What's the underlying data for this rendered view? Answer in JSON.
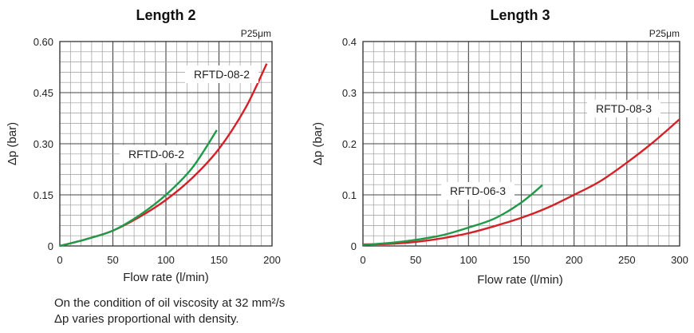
{
  "chart_data": [
    {
      "type": "line",
      "title": "Length 2",
      "xlabel": "Flow rate  (l/min)",
      "ylabel": "Δp (bar)",
      "note": "P25μm",
      "xlim": [
        0,
        200
      ],
      "ylim": [
        0,
        0.6
      ],
      "xticks": [
        "0",
        "50",
        "100",
        "150",
        "200"
      ],
      "yticks": [
        "0",
        "0.15",
        "0.30",
        "0.45",
        "0.60"
      ],
      "xtick_values": [
        0,
        50,
        100,
        150,
        200
      ],
      "ytick_values": [
        0,
        0.15,
        0.3,
        0.45,
        0.6
      ],
      "x_minor_step": 10,
      "y_minor_step": 0.03,
      "grid": true,
      "series": [
        {
          "name": "RFTD-08-2",
          "color": "#d42027",
          "x": [
            0,
            25,
            50,
            75,
            100,
            125,
            150,
            175,
            195
          ],
          "y": [
            0,
            0.02,
            0.045,
            0.085,
            0.135,
            0.2,
            0.285,
            0.405,
            0.535
          ]
        },
        {
          "name": "RFTD-06-2",
          "color": "#1e9a48",
          "x": [
            0,
            25,
            50,
            75,
            100,
            125,
            148
          ],
          "y": [
            0,
            0.02,
            0.045,
            0.09,
            0.15,
            0.23,
            0.34
          ]
        }
      ]
    },
    {
      "type": "line",
      "title": "Length 3",
      "xlabel": "Flow rate  (l/min)",
      "ylabel": "Δp (bar)",
      "note": "P25μm",
      "xlim": [
        0,
        300
      ],
      "ylim": [
        0,
        0.4
      ],
      "xticks": [
        "0",
        "50",
        "100",
        "150",
        "200",
        "250",
        "300"
      ],
      "yticks": [
        "0",
        "0.1",
        "0.2",
        "0.3",
        "0.4"
      ],
      "xtick_values": [
        0,
        50,
        100,
        150,
        200,
        250,
        300
      ],
      "ytick_values": [
        0,
        0.1,
        0.2,
        0.3,
        0.4
      ],
      "x_minor_step": 10,
      "y_minor_step": 0.02,
      "grid": true,
      "series": [
        {
          "name": "RFTD-08-3",
          "color": "#d42027",
          "x": [
            0,
            25,
            50,
            75,
            100,
            125,
            150,
            175,
            200,
            225,
            250,
            275,
            300
          ],
          "y": [
            0.003,
            0.004,
            0.008,
            0.015,
            0.025,
            0.039,
            0.055,
            0.075,
            0.1,
            0.127,
            0.163,
            0.203,
            0.248
          ]
        },
        {
          "name": "RFTD-06-3",
          "color": "#1e9a48",
          "x": [
            0,
            25,
            50,
            75,
            100,
            125,
            150,
            170
          ],
          "y": [
            0.002,
            0.006,
            0.012,
            0.021,
            0.036,
            0.054,
            0.085,
            0.119
          ]
        }
      ]
    }
  ],
  "footnote": {
    "line1": "On the condition of oil viscosity at 32 mm²/s",
    "line2": "Δp varies proportional with density."
  }
}
